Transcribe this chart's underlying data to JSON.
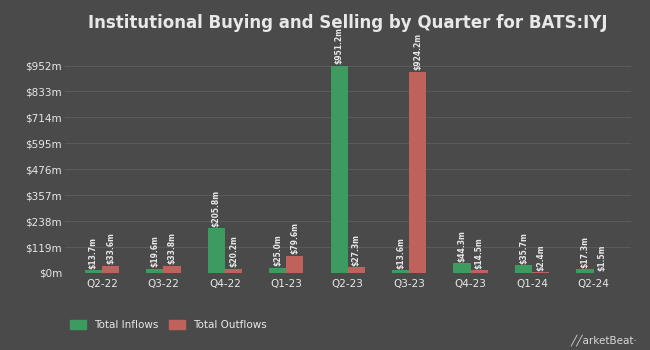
{
  "title": "Institutional Buying and Selling by Quarter for BATS:IYJ",
  "quarters": [
    "Q2-22",
    "Q3-22",
    "Q4-22",
    "Q1-23",
    "Q2-23",
    "Q3-23",
    "Q4-23",
    "Q1-24",
    "Q2-24"
  ],
  "inflows": [
    13.7,
    19.6,
    205.8,
    25.0,
    951.2,
    13.6,
    44.3,
    35.7,
    17.3
  ],
  "outflows": [
    33.6,
    33.8,
    20.2,
    79.6,
    27.3,
    924.2,
    14.5,
    2.4,
    1.5
  ],
  "inflow_labels": [
    "$13.7m",
    "$19.6m",
    "$205.8m",
    "$25.0m",
    "$951.2m",
    "$13.6m",
    "$44.3m",
    "$35.7m",
    "$17.3m"
  ],
  "outflow_labels": [
    "$33.6m",
    "$33.8m",
    "$20.2m",
    "$79.6m",
    "$27.3m",
    "$924.2m",
    "$14.5m",
    "$2.4m",
    "$1.5m"
  ],
  "inflow_color": "#3d9b60",
  "outflow_color": "#c0625c",
  "bg_color": "#4a4a4a",
  "grid_color": "#5e5e5e",
  "text_color": "#e8e8e8",
  "yticks": [
    0,
    119,
    238,
    357,
    476,
    595,
    714,
    833,
    952
  ],
  "ytick_labels": [
    "$0m",
    "$119m",
    "$238m",
    "$357m",
    "$476m",
    "$595m",
    "$714m",
    "$833m",
    "$952m"
  ],
  "ymax": 1060,
  "bar_width": 0.28,
  "label_fontsize": 5.5,
  "title_fontsize": 12,
  "axis_fontsize": 7.5,
  "legend_labels": [
    "Total Inflows",
    "Total Outflows"
  ],
  "legend_fontsize": 7.5
}
